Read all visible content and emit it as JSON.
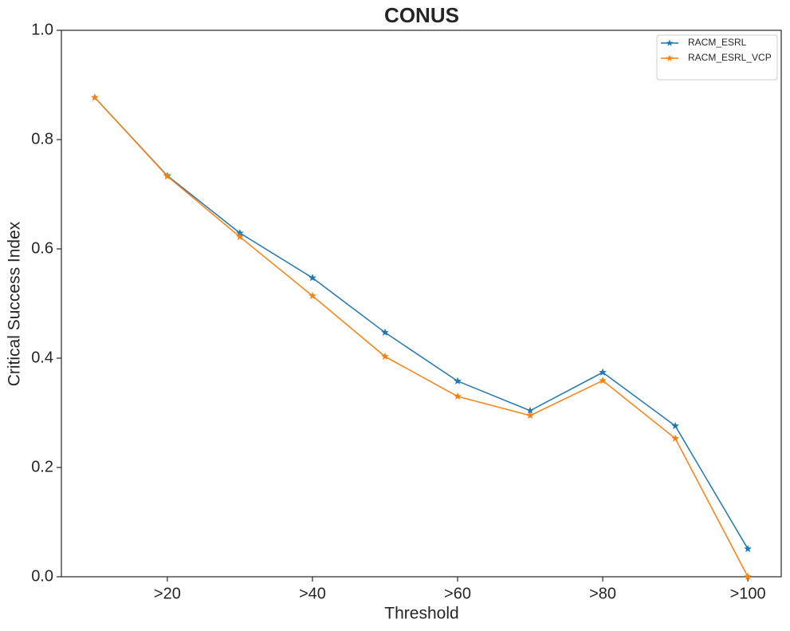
{
  "chart_data": {
    "type": "line",
    "title": "CONUS",
    "x_label": "Threshold",
    "y_label": "Critical Success Index",
    "categories": [
      null,
      ">20",
      null,
      ">40",
      null,
      ">60",
      null,
      ">80",
      null,
      ">100"
    ],
    "series": [
      {
        "name": "RACM_ESRL",
        "color": "#1f77b4",
        "values": [
          0.877,
          0.734,
          0.629,
          0.547,
          0.447,
          0.358,
          0.304,
          0.374,
          0.276,
          0.051
        ]
      },
      {
        "name": "RACM_ESRL_VCP",
        "color": "#ff7f0e",
        "values": [
          0.877,
          0.733,
          0.622,
          0.514,
          0.403,
          0.33,
          0.295,
          0.359,
          0.253,
          0.0
        ]
      }
    ],
    "ylim": [
      0,
      1
    ],
    "yticks": [
      {
        "value": 0,
        "label": "0.0"
      },
      0.2,
      0.4,
      0.6,
      0.8,
      {
        "value": 1,
        "label": "1.0"
      }
    ],
    "grid": false,
    "legend": "upper right",
    "marker": "star"
  }
}
